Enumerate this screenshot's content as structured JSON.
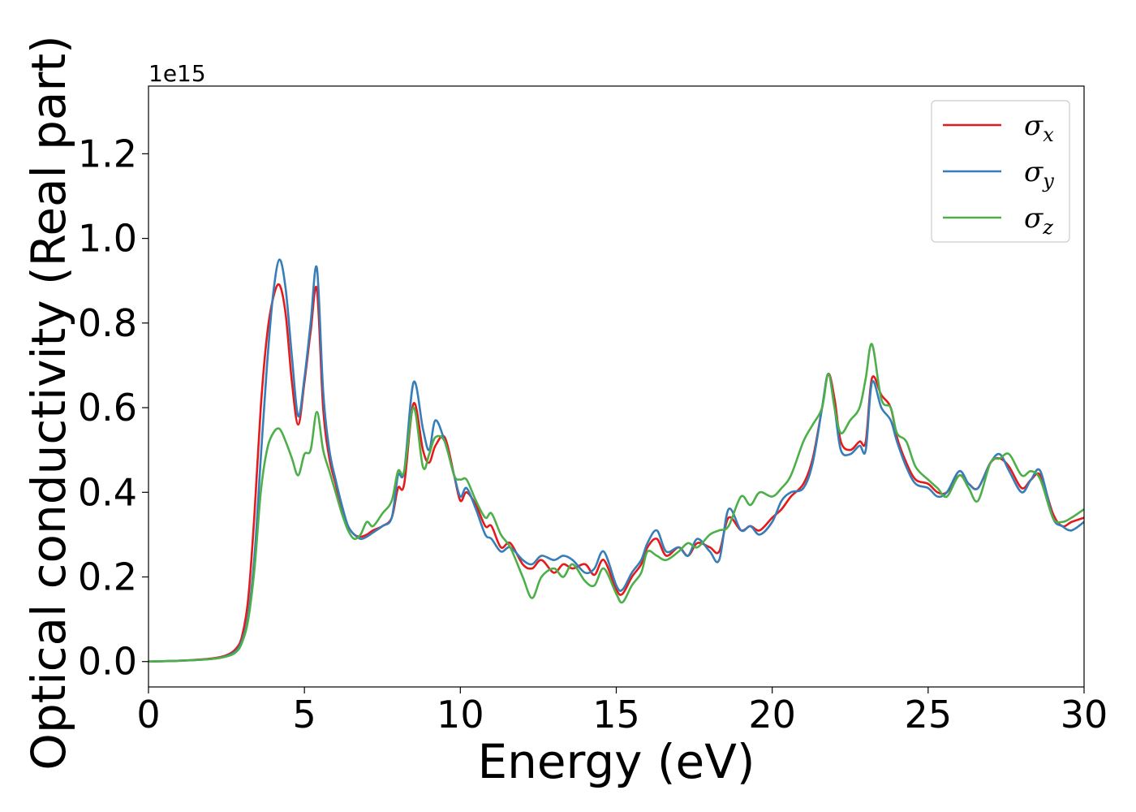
{
  "chart_data": {
    "type": "line",
    "title": "",
    "xlabel": "Energy (eV)",
    "ylabel": "Optical conductivity (Real part)",
    "y_offset_label": "1e15",
    "y_scale_factor": 1000000000000000.0,
    "xlim": [
      0,
      30
    ],
    "ylim": [
      -0.06,
      1.36
    ],
    "x_ticks": [
      0,
      5,
      10,
      15,
      20,
      25,
      30
    ],
    "x_tick_labels": [
      "0",
      "5",
      "10",
      "15",
      "20",
      "25",
      "30"
    ],
    "y_ticks": [
      0.0,
      0.2,
      0.4,
      0.6,
      0.8,
      1.0,
      1.2
    ],
    "y_tick_labels": [
      "0.0",
      "0.2",
      "0.4",
      "0.6",
      "0.8",
      "1.0",
      "1.2"
    ],
    "grid": false,
    "legend_position": "top-right",
    "series": [
      {
        "name": "σ_x",
        "label_main": "σ",
        "label_sub": "x",
        "color": "#e41a1c",
        "x": [
          0,
          1,
          2,
          2.5,
          2.8,
          3.0,
          3.2,
          3.4,
          3.6,
          3.8,
          4.0,
          4.2,
          4.4,
          4.6,
          4.8,
          5.0,
          5.2,
          5.4,
          5.6,
          5.8,
          6.0,
          6.2,
          6.4,
          6.6,
          6.8,
          7.0,
          7.2,
          7.5,
          7.8,
          8.0,
          8.2,
          8.5,
          8.8,
          9.0,
          9.2,
          9.5,
          9.8,
          10.0,
          10.2,
          10.5,
          10.8,
          11.0,
          11.3,
          11.6,
          12.0,
          12.3,
          12.6,
          13.0,
          13.3,
          13.6,
          14.0,
          14.3,
          14.6,
          15.0,
          15.2,
          15.5,
          15.8,
          16.0,
          16.3,
          16.6,
          17.0,
          17.3,
          17.6,
          18.0,
          18.3,
          18.6,
          19.0,
          19.3,
          19.6,
          20.0,
          20.3,
          20.6,
          21.0,
          21.3,
          21.6,
          21.8,
          22.0,
          22.2,
          22.5,
          22.8,
          23.0,
          23.2,
          23.5,
          23.8,
          24.0,
          24.3,
          24.6,
          25.0,
          25.3,
          25.6,
          26.0,
          26.3,
          26.6,
          27.0,
          27.3,
          27.6,
          28.0,
          28.3,
          28.6,
          29.0,
          29.3,
          29.6,
          30.0
        ],
        "y": [
          0,
          0.002,
          0.007,
          0.015,
          0.03,
          0.06,
          0.15,
          0.35,
          0.6,
          0.77,
          0.86,
          0.89,
          0.82,
          0.66,
          0.56,
          0.66,
          0.78,
          0.88,
          0.6,
          0.48,
          0.42,
          0.36,
          0.32,
          0.3,
          0.295,
          0.3,
          0.31,
          0.32,
          0.34,
          0.41,
          0.42,
          0.61,
          0.5,
          0.47,
          0.51,
          0.53,
          0.44,
          0.38,
          0.4,
          0.37,
          0.32,
          0.32,
          0.27,
          0.28,
          0.23,
          0.22,
          0.24,
          0.21,
          0.23,
          0.22,
          0.23,
          0.205,
          0.24,
          0.17,
          0.16,
          0.2,
          0.23,
          0.27,
          0.29,
          0.25,
          0.27,
          0.25,
          0.28,
          0.27,
          0.26,
          0.34,
          0.31,
          0.32,
          0.31,
          0.34,
          0.36,
          0.39,
          0.42,
          0.48,
          0.6,
          0.68,
          0.62,
          0.52,
          0.5,
          0.52,
          0.52,
          0.67,
          0.63,
          0.6,
          0.53,
          0.47,
          0.43,
          0.42,
          0.4,
          0.4,
          0.44,
          0.42,
          0.41,
          0.47,
          0.48,
          0.46,
          0.41,
          0.43,
          0.44,
          0.35,
          0.32,
          0.33,
          0.34
        ]
      },
      {
        "name": "σ_y",
        "label_main": "σ",
        "label_sub": "y",
        "color": "#377eb8",
        "x": [
          0,
          1,
          2,
          2.5,
          2.8,
          3.0,
          3.2,
          3.4,
          3.6,
          3.8,
          4.0,
          4.2,
          4.4,
          4.6,
          4.8,
          5.0,
          5.2,
          5.4,
          5.6,
          5.8,
          6.0,
          6.2,
          6.4,
          6.6,
          6.8,
          7.0,
          7.2,
          7.5,
          7.8,
          8.0,
          8.2,
          8.5,
          8.8,
          9.0,
          9.2,
          9.5,
          9.8,
          10.0,
          10.2,
          10.5,
          10.8,
          11.0,
          11.3,
          11.6,
          12.0,
          12.3,
          12.6,
          13.0,
          13.3,
          13.6,
          14.0,
          14.3,
          14.6,
          15.0,
          15.2,
          15.5,
          15.8,
          16.0,
          16.3,
          16.6,
          17.0,
          17.3,
          17.6,
          18.0,
          18.3,
          18.6,
          19.0,
          19.3,
          19.6,
          20.0,
          20.3,
          20.6,
          21.0,
          21.3,
          21.6,
          21.8,
          22.0,
          22.2,
          22.5,
          22.8,
          23.0,
          23.2,
          23.5,
          23.8,
          24.0,
          24.3,
          24.6,
          25.0,
          25.3,
          25.6,
          26.0,
          26.3,
          26.6,
          27.0,
          27.3,
          27.6,
          28.0,
          28.3,
          28.6,
          29.0,
          29.3,
          29.6,
          30.0
        ],
        "y": [
          0,
          0.002,
          0.006,
          0.013,
          0.025,
          0.05,
          0.11,
          0.25,
          0.48,
          0.7,
          0.87,
          0.95,
          0.88,
          0.72,
          0.58,
          0.67,
          0.8,
          0.93,
          0.64,
          0.5,
          0.43,
          0.37,
          0.32,
          0.3,
          0.29,
          0.295,
          0.305,
          0.32,
          0.34,
          0.44,
          0.45,
          0.66,
          0.55,
          0.5,
          0.57,
          0.52,
          0.44,
          0.39,
          0.41,
          0.36,
          0.3,
          0.29,
          0.26,
          0.27,
          0.24,
          0.23,
          0.25,
          0.24,
          0.25,
          0.24,
          0.21,
          0.22,
          0.26,
          0.18,
          0.17,
          0.21,
          0.24,
          0.28,
          0.31,
          0.26,
          0.27,
          0.25,
          0.29,
          0.26,
          0.24,
          0.36,
          0.31,
          0.32,
          0.3,
          0.33,
          0.38,
          0.4,
          0.41,
          0.47,
          0.6,
          0.68,
          0.6,
          0.5,
          0.49,
          0.51,
          0.5,
          0.66,
          0.6,
          0.57,
          0.52,
          0.46,
          0.42,
          0.41,
          0.39,
          0.4,
          0.45,
          0.42,
          0.41,
          0.47,
          0.49,
          0.45,
          0.4,
          0.43,
          0.45,
          0.34,
          0.32,
          0.31,
          0.33
        ]
      },
      {
        "name": "σ_z",
        "label_main": "σ",
        "label_sub": "z",
        "color": "#4daf4a",
        "x": [
          0,
          1,
          2,
          2.5,
          2.8,
          3.0,
          3.2,
          3.4,
          3.6,
          3.8,
          4.0,
          4.2,
          4.4,
          4.6,
          4.8,
          5.0,
          5.2,
          5.4,
          5.6,
          5.8,
          6.0,
          6.2,
          6.4,
          6.6,
          6.8,
          7.0,
          7.2,
          7.5,
          7.8,
          8.0,
          8.2,
          8.5,
          8.8,
          9.0,
          9.2,
          9.5,
          9.8,
          10.0,
          10.2,
          10.5,
          10.8,
          11.0,
          11.3,
          11.6,
          12.0,
          12.3,
          12.6,
          13.0,
          13.3,
          13.6,
          14.0,
          14.3,
          14.6,
          15.0,
          15.2,
          15.5,
          15.8,
          16.0,
          16.3,
          16.6,
          17.0,
          17.3,
          17.6,
          18.0,
          18.3,
          18.6,
          19.0,
          19.3,
          19.6,
          20.0,
          20.3,
          20.6,
          21.0,
          21.3,
          21.6,
          21.8,
          22.0,
          22.2,
          22.5,
          22.8,
          23.0,
          23.2,
          23.5,
          23.8,
          24.0,
          24.3,
          24.6,
          25.0,
          25.3,
          25.6,
          26.0,
          26.3,
          26.6,
          27.0,
          27.3,
          27.6,
          28.0,
          28.3,
          28.6,
          29.0,
          29.3,
          29.6,
          30.0
        ],
        "y": [
          0,
          0.002,
          0.006,
          0.012,
          0.022,
          0.045,
          0.1,
          0.22,
          0.4,
          0.5,
          0.54,
          0.55,
          0.52,
          0.48,
          0.44,
          0.49,
          0.5,
          0.59,
          0.5,
          0.45,
          0.4,
          0.35,
          0.31,
          0.29,
          0.3,
          0.33,
          0.32,
          0.35,
          0.38,
          0.45,
          0.45,
          0.6,
          0.46,
          0.49,
          0.53,
          0.52,
          0.44,
          0.43,
          0.43,
          0.38,
          0.34,
          0.35,
          0.3,
          0.27,
          0.2,
          0.15,
          0.2,
          0.22,
          0.2,
          0.23,
          0.19,
          0.18,
          0.22,
          0.16,
          0.14,
          0.18,
          0.21,
          0.26,
          0.25,
          0.24,
          0.26,
          0.28,
          0.27,
          0.3,
          0.31,
          0.32,
          0.39,
          0.37,
          0.4,
          0.39,
          0.41,
          0.44,
          0.52,
          0.56,
          0.6,
          0.68,
          0.6,
          0.54,
          0.57,
          0.6,
          0.67,
          0.75,
          0.62,
          0.6,
          0.54,
          0.52,
          0.46,
          0.43,
          0.41,
          0.39,
          0.44,
          0.41,
          0.38,
          0.47,
          0.48,
          0.49,
          0.44,
          0.45,
          0.43,
          0.34,
          0.33,
          0.34,
          0.36
        ]
      }
    ]
  }
}
